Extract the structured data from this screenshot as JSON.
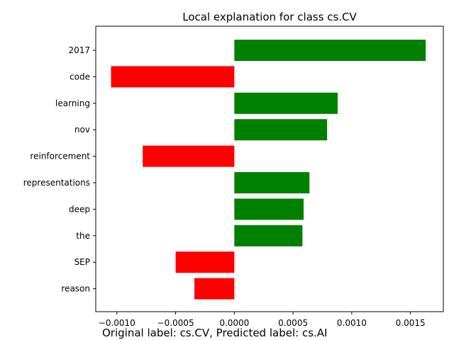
{
  "chart_data": {
    "type": "bar",
    "orientation": "horizontal",
    "title": "Local explanation for class cs.CV",
    "caption": "Original label: cs.CV, Predicted label: cs.AI",
    "categories": [
      "2017",
      "code",
      "learning",
      "nov",
      "reinforcement",
      "representations",
      "deep",
      "the",
      "SEP",
      "reason"
    ],
    "values": [
      0.00163,
      -0.00105,
      0.00088,
      0.00079,
      -0.00078,
      0.00064,
      0.00059,
      0.00058,
      -0.0005,
      -0.00034
    ],
    "xlim": [
      -0.00118,
      0.00178
    ],
    "x_ticks": [
      -0.001,
      -0.0005,
      0.0,
      0.0005,
      0.001,
      0.0015
    ],
    "x_tick_labels": [
      "−0.0010",
      "−0.0005",
      "0.0000",
      "0.0005",
      "0.0010",
      "0.0015"
    ],
    "colors": {
      "positive": "#008000",
      "negative": "#ff0000"
    },
    "grid": false,
    "legend": "none"
  }
}
